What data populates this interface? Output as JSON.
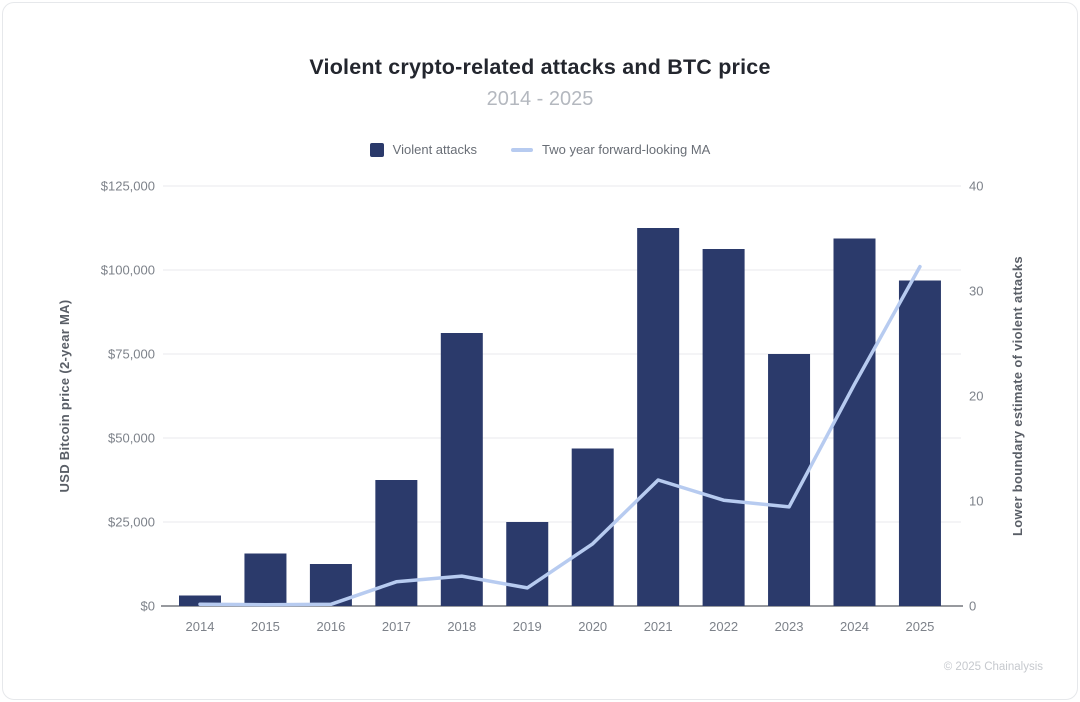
{
  "footer": {
    "text": "© 2025 Chainalysis"
  },
  "chart_data": {
    "type": "bar",
    "title": "Violent crypto-related attacks and BTC price",
    "subtitle": "2014 - 2025",
    "categories": [
      "2014",
      "2015",
      "2016",
      "2017",
      "2018",
      "2019",
      "2020",
      "2021",
      "2022",
      "2023",
      "2024",
      "2025"
    ],
    "series": [
      {
        "name": "Violent attacks",
        "type": "bar",
        "axis": "right",
        "color": "#2b3a6b",
        "values": [
          1,
          5,
          4,
          12,
          26,
          8,
          15,
          36,
          34,
          24,
          35,
          31
        ]
      },
      {
        "name": "Two year forward-looking MA",
        "type": "line",
        "axis": "left",
        "color": "#b7cbf0",
        "values": [
          500,
          400,
          500,
          7200,
          8900,
          5400,
          18500,
          37500,
          31500,
          29500,
          66000,
          101000
        ]
      }
    ],
    "left_axis": {
      "label": "USD Bitcoin price (2-year MA)",
      "min": 0,
      "max": 125000,
      "ticks": [
        "$0",
        "$25,000",
        "$50,000",
        "$75,000",
        "$100,000",
        "$125,000"
      ]
    },
    "right_axis": {
      "label": "Lower boundary estimate of violent attacks",
      "min": 0,
      "max": 40,
      "ticks": [
        "0",
        "10",
        "20",
        "30",
        "40"
      ]
    },
    "grid": true,
    "legend_position": "top"
  }
}
